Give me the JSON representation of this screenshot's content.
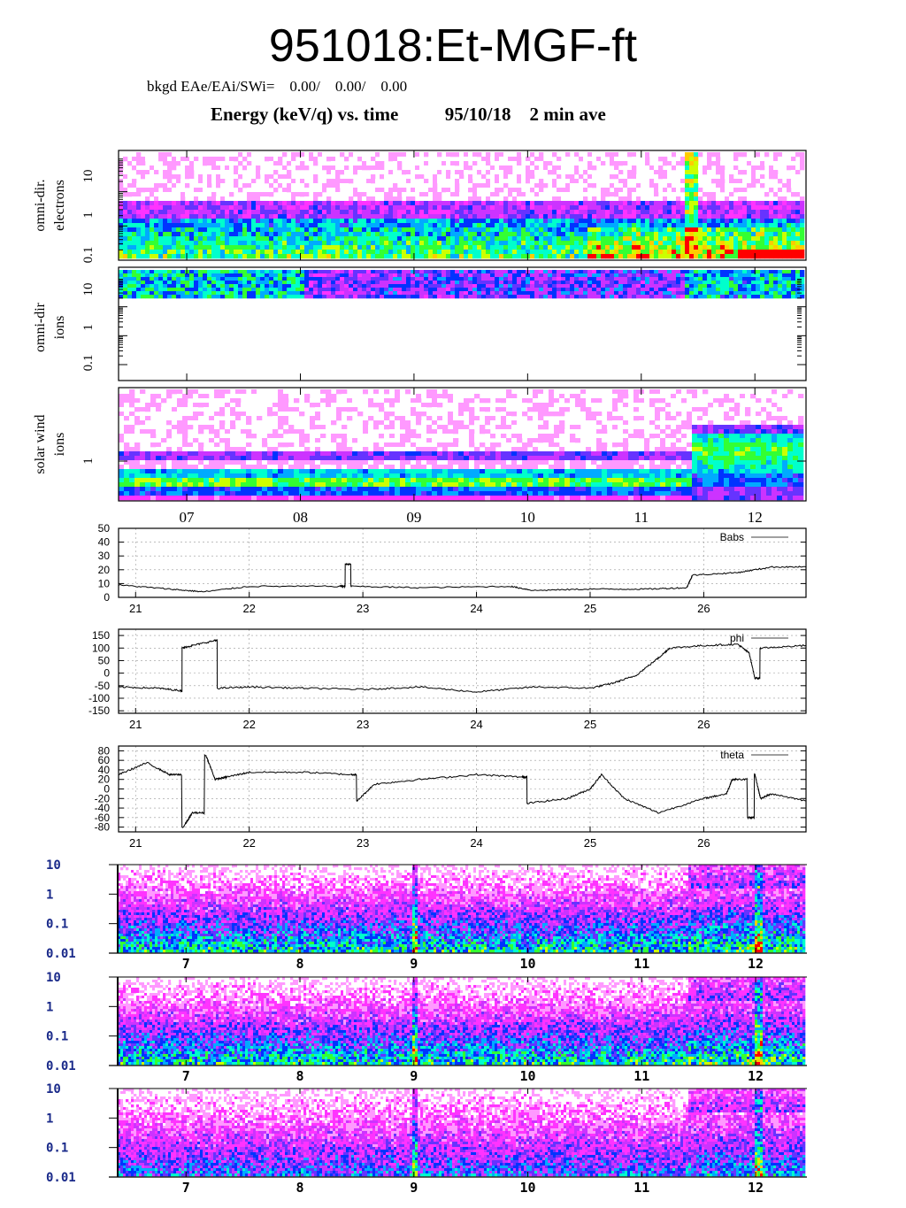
{
  "header": {
    "title": "951018:Et-MGF-ft",
    "bkgd": "bkgd EAe/EAi/SWi=    0.00/    0.00/    0.00",
    "subtitle": "Energy (keV/q) vs. time          95/10/18    2 min ave"
  },
  "chart_data": [
    {
      "type": "heatmap",
      "id": "spectrogram-electrons",
      "ylabel": "omni-dir. electrons",
      "yscale": "log",
      "yticks": [
        "10",
        "1",
        "0.1"
      ],
      "xticks": [
        "07",
        "08",
        "09",
        "10",
        "11",
        "12"
      ],
      "xlim": [
        6.4,
        12.45
      ],
      "grid": false
    },
    {
      "type": "heatmap",
      "id": "spectrogram-ions",
      "ylabel": "omni-dir ions",
      "yscale": "log",
      "yticks": [
        "10",
        "1",
        "0.1"
      ],
      "xticks": [
        "07",
        "08",
        "09",
        "10",
        "11",
        "12"
      ],
      "xlim": [
        6.4,
        12.45
      ],
      "grid": false
    },
    {
      "type": "heatmap",
      "id": "spectrogram-solar-wind-ions",
      "ylabel": "solar wind ions",
      "yscale": "log",
      "yticks": [
        "1"
      ],
      "xticks": [
        "07",
        "08",
        "09",
        "10",
        "11",
        "12"
      ],
      "xlim": [
        6.4,
        12.45
      ],
      "grid": false
    },
    {
      "type": "line",
      "id": "line-babs",
      "series": [
        {
          "name": "Babs",
          "x": [
            20.85,
            21.3,
            21.6,
            22.0,
            22.8,
            22.85,
            22.9,
            23.5,
            24.3,
            24.5,
            25.0,
            25.5,
            25.85,
            25.9,
            26.3,
            26.6,
            26.9
          ],
          "y": [
            9,
            6,
            4,
            8,
            8,
            24,
            8,
            7,
            8,
            5,
            6,
            6,
            7,
            16,
            18,
            22,
            22
          ]
        }
      ],
      "yticks": [
        "50",
        "40",
        "30",
        "20",
        "10",
        "0"
      ],
      "ylim": [
        0,
        50
      ],
      "xticks": [
        "21",
        "22",
        "23",
        "24",
        "25",
        "26"
      ],
      "xlim": [
        20.85,
        26.9
      ],
      "grid": true,
      "legend": "top-right"
    },
    {
      "type": "line",
      "id": "line-phi",
      "series": [
        {
          "name": "phi",
          "x": [
            20.85,
            21.2,
            21.4,
            21.41,
            21.5,
            21.7,
            21.72,
            22.0,
            22.5,
            23.0,
            23.5,
            24.0,
            24.5,
            25.0,
            25.2,
            25.4,
            25.6,
            25.7,
            26.0,
            26.3,
            26.4,
            26.45,
            26.5,
            26.9
          ],
          "y": [
            -55,
            -60,
            -70,
            100,
            110,
            130,
            -60,
            -55,
            -60,
            -65,
            -55,
            -75,
            -55,
            -60,
            -40,
            -10,
            60,
            100,
            110,
            115,
            80,
            -20,
            100,
            110
          ]
        }
      ],
      "yticks": [
        "150",
        "100",
        "50",
        "0",
        "-50",
        "-100",
        "-150"
      ],
      "ylim": [
        -160,
        175
      ],
      "xticks": [
        "21",
        "22",
        "23",
        "24",
        "25",
        "26"
      ],
      "xlim": [
        20.85,
        26.9
      ],
      "grid": true,
      "legend": "top-right"
    },
    {
      "type": "line",
      "id": "line-theta",
      "series": [
        {
          "name": "theta",
          "x": [
            20.85,
            21.1,
            21.3,
            21.42,
            21.5,
            21.62,
            21.7,
            21.8,
            22.0,
            22.5,
            22.9,
            22.95,
            23.1,
            23.5,
            24.0,
            24.4,
            24.45,
            24.8,
            25.0,
            25.1,
            25.3,
            25.6,
            26.0,
            26.2,
            26.25,
            26.4,
            26.45,
            26.5,
            26.6,
            26.9
          ],
          "y": [
            30,
            55,
            30,
            -80,
            -50,
            70,
            20,
            25,
            35,
            35,
            30,
            -25,
            10,
            20,
            30,
            25,
            -30,
            -20,
            0,
            30,
            -20,
            -50,
            -20,
            -10,
            20,
            -60,
            30,
            -20,
            -10,
            -25
          ]
        }
      ],
      "yticks": [
        "80",
        "60",
        "40",
        "20",
        "0",
        "-20",
        "-40",
        "-60",
        "-80"
      ],
      "ylim": [
        -90,
        90
      ],
      "xticks": [
        "21",
        "22",
        "23",
        "24",
        "25",
        "26"
      ],
      "xlim": [
        20.85,
        26.9
      ],
      "grid": true,
      "legend": "top-right"
    },
    {
      "type": "heatmap",
      "id": "spectrogram-lower-1",
      "yscale": "log",
      "yticks": [
        "10",
        "1",
        "0.1",
        "0.01"
      ],
      "xticks": [
        "7",
        "8",
        "9",
        "10",
        "11",
        "12"
      ],
      "xlim": [
        6.4,
        12.45
      ]
    },
    {
      "type": "heatmap",
      "id": "spectrogram-lower-2",
      "yscale": "log",
      "yticks": [
        "10",
        "1",
        "0.1",
        "0.01"
      ],
      "xticks": [
        "7",
        "8",
        "9",
        "10",
        "11",
        "12"
      ],
      "xlim": [
        6.4,
        12.45
      ]
    },
    {
      "type": "heatmap",
      "id": "spectrogram-lower-3",
      "yscale": "log",
      "yticks": [
        "10",
        "1",
        "0.1",
        "0.01"
      ],
      "xticks": [
        "7",
        "8",
        "9",
        "10",
        "11",
        "12"
      ],
      "xlim": [
        6.4,
        12.45
      ]
    }
  ]
}
